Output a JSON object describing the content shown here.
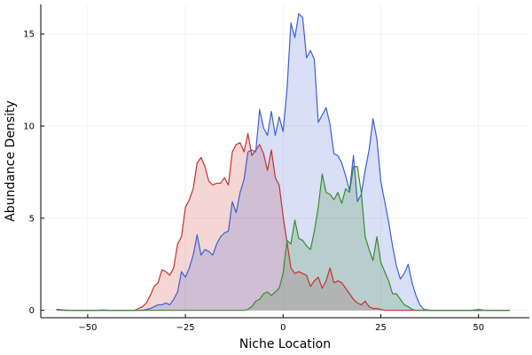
{
  "chart_data": {
    "type": "area",
    "title": "",
    "xlabel": "Niche Location",
    "ylabel": "Abundance Density",
    "xlim": [
      -62,
      63
    ],
    "ylim": [
      -0.4,
      16.6
    ],
    "xticks": [
      -50,
      -25,
      0,
      25,
      50
    ],
    "xtick_labels": [
      "−50",
      "−25",
      "0",
      "25",
      "50"
    ],
    "yticks": [
      0,
      5,
      10,
      15
    ],
    "ytick_labels": [
      "0",
      "5",
      "10",
      "15"
    ],
    "grid": true,
    "legend": "none",
    "x": [
      -58,
      -56,
      -54,
      -52,
      -50,
      -48,
      -46,
      -44,
      -42,
      -40,
      -38,
      -37,
      -36,
      -35,
      -34,
      -33,
      -32,
      -31,
      -30,
      -29,
      -28,
      -27,
      -26,
      -25,
      -24,
      -23,
      -22,
      -21,
      -20,
      -19,
      -18,
      -17,
      -16,
      -15,
      -14,
      -13,
      -12,
      -11,
      -10,
      -9,
      -8,
      -7,
      -6,
      -5,
      -4,
      -3,
      -2,
      -1,
      0,
      1,
      2,
      3,
      4,
      5,
      6,
      7,
      8,
      9,
      10,
      11,
      12,
      13,
      14,
      15,
      16,
      17,
      18,
      19,
      20,
      21,
      22,
      23,
      24,
      25,
      26,
      27,
      28,
      29,
      30,
      31,
      32,
      33,
      34,
      35,
      36,
      38,
      40,
      42,
      44,
      46,
      48,
      50,
      52,
      54,
      56,
      58
    ],
    "series": [
      {
        "color": "#c8312d",
        "fill": "#f4c5c0",
        "values": [
          0.05,
          0,
          0,
          0,
          0,
          0,
          0,
          0,
          0,
          0,
          0,
          0.1,
          0.2,
          0.4,
          0.8,
          1.3,
          1.5,
          2.2,
          2.1,
          1.9,
          2.3,
          3.6,
          4.0,
          5.6,
          6.0,
          6.6,
          8.0,
          8.3,
          7.8,
          7.0,
          6.8,
          6.9,
          6.9,
          7.2,
          6.8,
          8.6,
          9.0,
          9.1,
          8.6,
          9.6,
          8.4,
          8.7,
          9.0,
          8.5,
          7.6,
          8.7,
          7.2,
          6.8,
          5.1,
          3.7,
          2.3,
          2.0,
          2.1,
          2.0,
          1.9,
          1.3,
          1.6,
          1.8,
          1.2,
          1.6,
          2.3,
          1.5,
          1.6,
          1.5,
          1.2,
          0.9,
          0.6,
          0.4,
          0.3,
          0.5,
          0.2,
          0.1,
          0.1,
          0.05,
          0,
          0,
          0,
          0,
          0,
          0,
          0,
          0,
          0,
          0,
          0,
          0,
          0,
          0,
          0,
          0,
          0,
          0,
          0,
          0,
          0,
          0
        ]
      },
      {
        "color": "#3d5fd3",
        "fill": "#d4dcf6",
        "values": [
          0.02,
          0,
          0,
          0,
          0,
          0,
          0.02,
          0,
          0,
          0,
          0,
          0,
          0,
          0.05,
          0.1,
          0.2,
          0.3,
          0.3,
          0.4,
          0.3,
          0.6,
          1.0,
          2.1,
          1.8,
          2.3,
          3.0,
          4.1,
          3.0,
          3.3,
          3.2,
          3.0,
          3.6,
          4.0,
          4.2,
          4.3,
          5.9,
          5.3,
          6.4,
          7.1,
          8.6,
          8.7,
          8.6,
          10.9,
          9.9,
          9.5,
          10.8,
          9.5,
          10.5,
          9.7,
          12.0,
          15.6,
          14.8,
          16.1,
          15.9,
          13.7,
          14.1,
          13.6,
          10.2,
          10.6,
          11.0,
          10.1,
          8.5,
          8.4,
          8.0,
          7.3,
          6.5,
          8.4,
          5.9,
          6.3,
          7.6,
          8.7,
          10.4,
          9.3,
          7.0,
          5.9,
          4.8,
          3.5,
          2.4,
          1.7,
          2.0,
          2.5,
          1.5,
          0.8,
          0.3,
          0.05,
          0,
          0,
          0,
          0,
          0,
          0,
          0,
          0,
          0,
          0,
          0
        ]
      },
      {
        "color": "#3b8b2d",
        "fill": "#a8cfb0",
        "values": [
          0.05,
          0.02,
          0,
          0,
          0,
          0,
          0,
          0,
          0,
          0,
          0,
          0,
          0,
          0,
          0,
          0,
          0,
          0,
          0,
          0,
          0,
          0,
          0,
          0,
          0,
          0,
          0,
          0,
          0,
          0,
          0,
          0,
          0,
          0,
          0,
          0,
          0,
          0,
          0,
          0.05,
          0.2,
          0.5,
          0.6,
          0.9,
          1.0,
          0.8,
          1.0,
          1.2,
          2.0,
          3.8,
          3.6,
          4.9,
          3.9,
          3.8,
          3.5,
          3.3,
          4.3,
          5.6,
          7.4,
          6.4,
          6.3,
          6.0,
          6.4,
          5.8,
          6.6,
          6.4,
          7.8,
          7.8,
          6.4,
          4.0,
          3.3,
          2.7,
          4.0,
          2.6,
          2.1,
          1.6,
          0.9,
          0.9,
          0.6,
          0.3,
          0.2,
          0.05,
          0,
          0,
          0,
          0,
          0,
          0,
          0,
          0,
          0,
          0.05,
          0,
          0,
          0,
          0
        ]
      }
    ]
  }
}
